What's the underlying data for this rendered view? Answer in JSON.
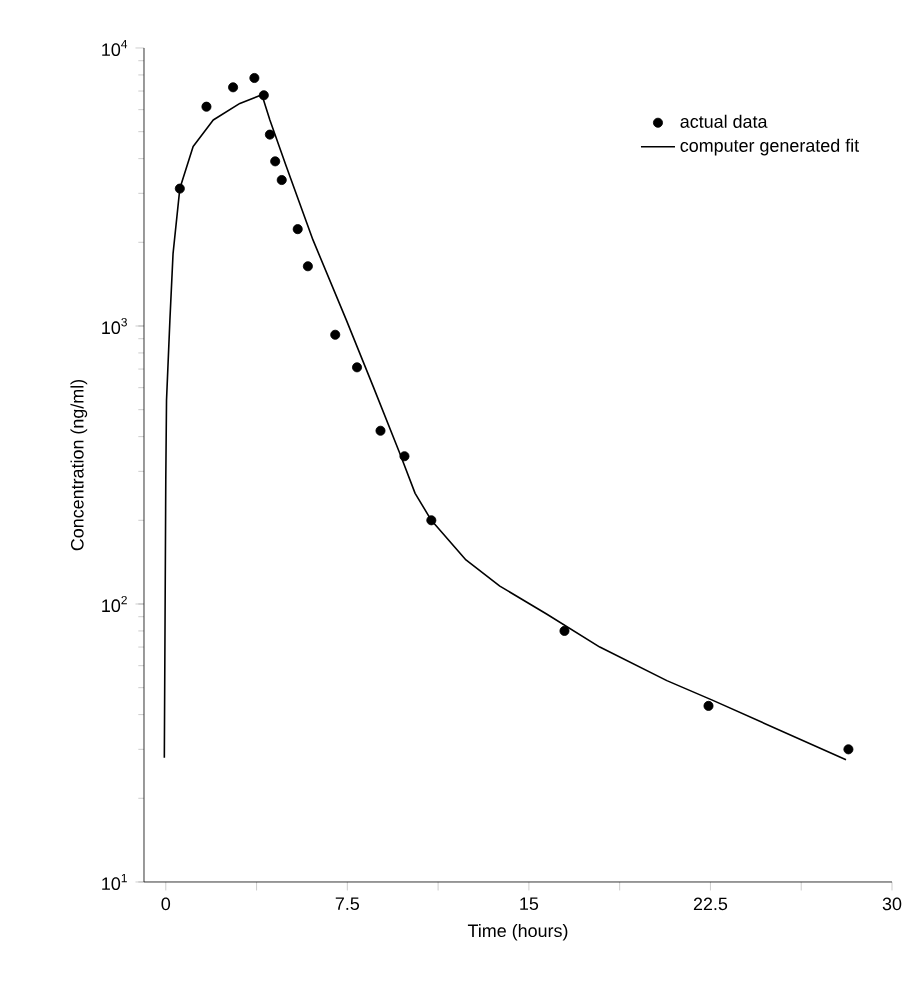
{
  "chart_data": {
    "type": "scatter",
    "xlabel": "Time  (hours)",
    "ylabel": "Concentration  (ng/ml)",
    "log": "y",
    "xlim": [
      -0.9,
      30
    ],
    "ylim": [
      10,
      10000
    ],
    "xticks": [
      0,
      {
        "value": 3.75,
        "label": null
      },
      7.5,
      {
        "value": 11.25,
        "label": null
      },
      15,
      {
        "value": 18.75,
        "label": null
      },
      22.5,
      {
        "value": 26.25,
        "label": null
      },
      30
    ],
    "yticks": [
      {
        "value": 10,
        "label": "10$^{1}$"
      },
      {
        "value": 100,
        "label": "10$^{2}$"
      },
      {
        "value": 1000,
        "label": "10$^{3}$"
      },
      {
        "value": 10000,
        "label": "10$^{4}$"
      }
    ],
    "legend": "top right",
    "series": [
      {
        "name": "actual data",
        "type": "scatter",
        "marker": "circle",
        "color": "#000000",
        "x": [
          0.58,
          1.68,
          2.78,
          3.66,
          4.05,
          4.3,
          4.52,
          4.79,
          5.45,
          5.87,
          7.0,
          7.9,
          8.87,
          9.86,
          10.97,
          16.47,
          22.42,
          28.2
        ],
        "values": [
          3120,
          6150,
          7220,
          7800,
          6760,
          4880,
          3910,
          3350,
          2230,
          1640,
          930,
          710,
          420,
          340,
          200,
          80,
          43,
          30
        ]
      },
      {
        "name": "computer generated fit",
        "type": "line",
        "marker": "none",
        "color": "#000000",
        "x": [
          -0.06,
          0.0,
          0.03,
          0.17,
          0.3,
          0.58,
          1.13,
          1.96,
          3.06,
          3.97,
          4.3,
          4.98,
          6.08,
          7.46,
          8.57,
          9.67,
          10.3,
          10.97,
          12.4,
          13.8,
          15.73,
          17.93,
          20.7,
          22.6,
          28.1
        ],
        "values": [
          28,
          280,
          540,
          1050,
          1820,
          3120,
          4420,
          5510,
          6320,
          6790,
          5510,
          3750,
          2040,
          1050,
          605,
          348,
          250,
          200,
          144,
          116,
          92,
          70,
          53,
          45,
          27.5
        ]
      }
    ]
  }
}
